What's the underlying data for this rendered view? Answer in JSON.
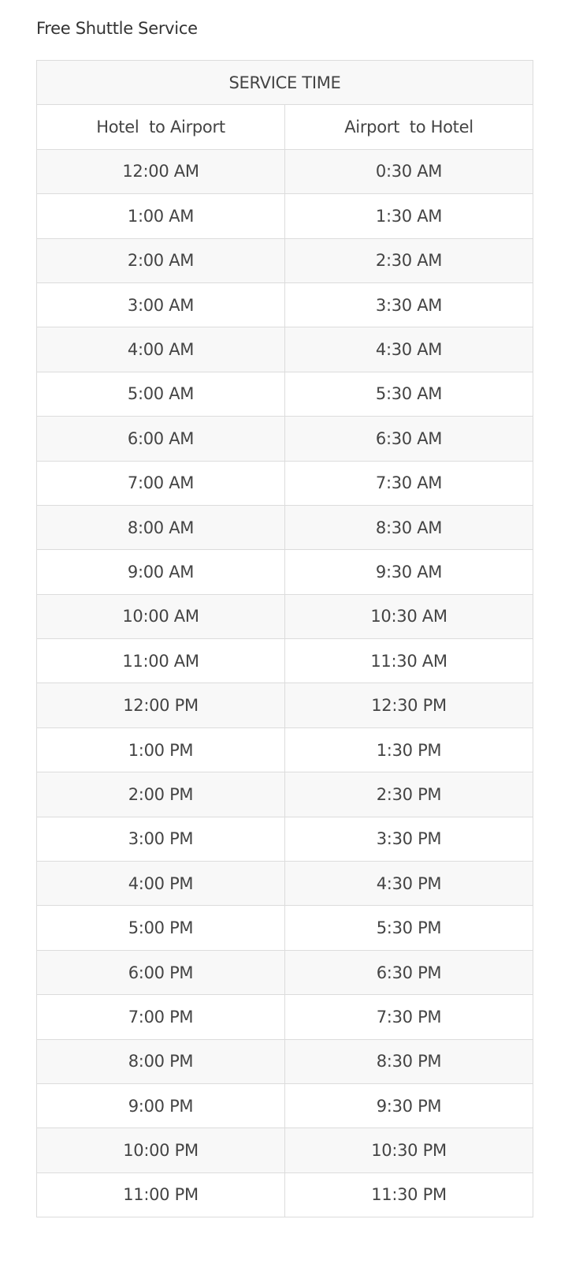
{
  "title": "Free Shuttle Service",
  "table": {
    "caption": "SERVICE TIME",
    "columns": [
      "Hotel  to Airport",
      "Airport  to Hotel"
    ],
    "rows": [
      [
        "12:00 AM",
        "0:30 AM"
      ],
      [
        "1:00 AM",
        "1:30 AM"
      ],
      [
        "2:00 AM",
        "2:30 AM"
      ],
      [
        "3:00 AM",
        "3:30 AM"
      ],
      [
        "4:00 AM",
        "4:30 AM"
      ],
      [
        "5:00 AM",
        "5:30 AM"
      ],
      [
        "6:00 AM",
        "6:30 AM"
      ],
      [
        "7:00 AM",
        "7:30 AM"
      ],
      [
        "8:00 AM",
        "8:30 AM"
      ],
      [
        "9:00 AM",
        "9:30 AM"
      ],
      [
        "10:00 AM",
        "10:30 AM"
      ],
      [
        "11:00 AM",
        "11:30 AM"
      ],
      [
        "12:00 PM",
        "12:30 PM"
      ],
      [
        "1:00 PM",
        "1:30 PM"
      ],
      [
        "2:00 PM",
        "2:30 PM"
      ],
      [
        "3:00 PM",
        "3:30 PM"
      ],
      [
        "4:00 PM",
        "4:30 PM"
      ],
      [
        "5:00 PM",
        "5:30 PM"
      ],
      [
        "6:00 PM",
        "6:30 PM"
      ],
      [
        "7:00 PM",
        "7:30 PM"
      ],
      [
        "8:00 PM",
        "8:30 PM"
      ],
      [
        "9:00 PM",
        "9:30 PM"
      ],
      [
        "10:00 PM",
        "10:30 PM"
      ],
      [
        "11:00 PM",
        "11:30 PM"
      ]
    ]
  },
  "colors": {
    "text": "#444444",
    "border": "#dcdcdc",
    "stripe": "#f8f8f8"
  }
}
